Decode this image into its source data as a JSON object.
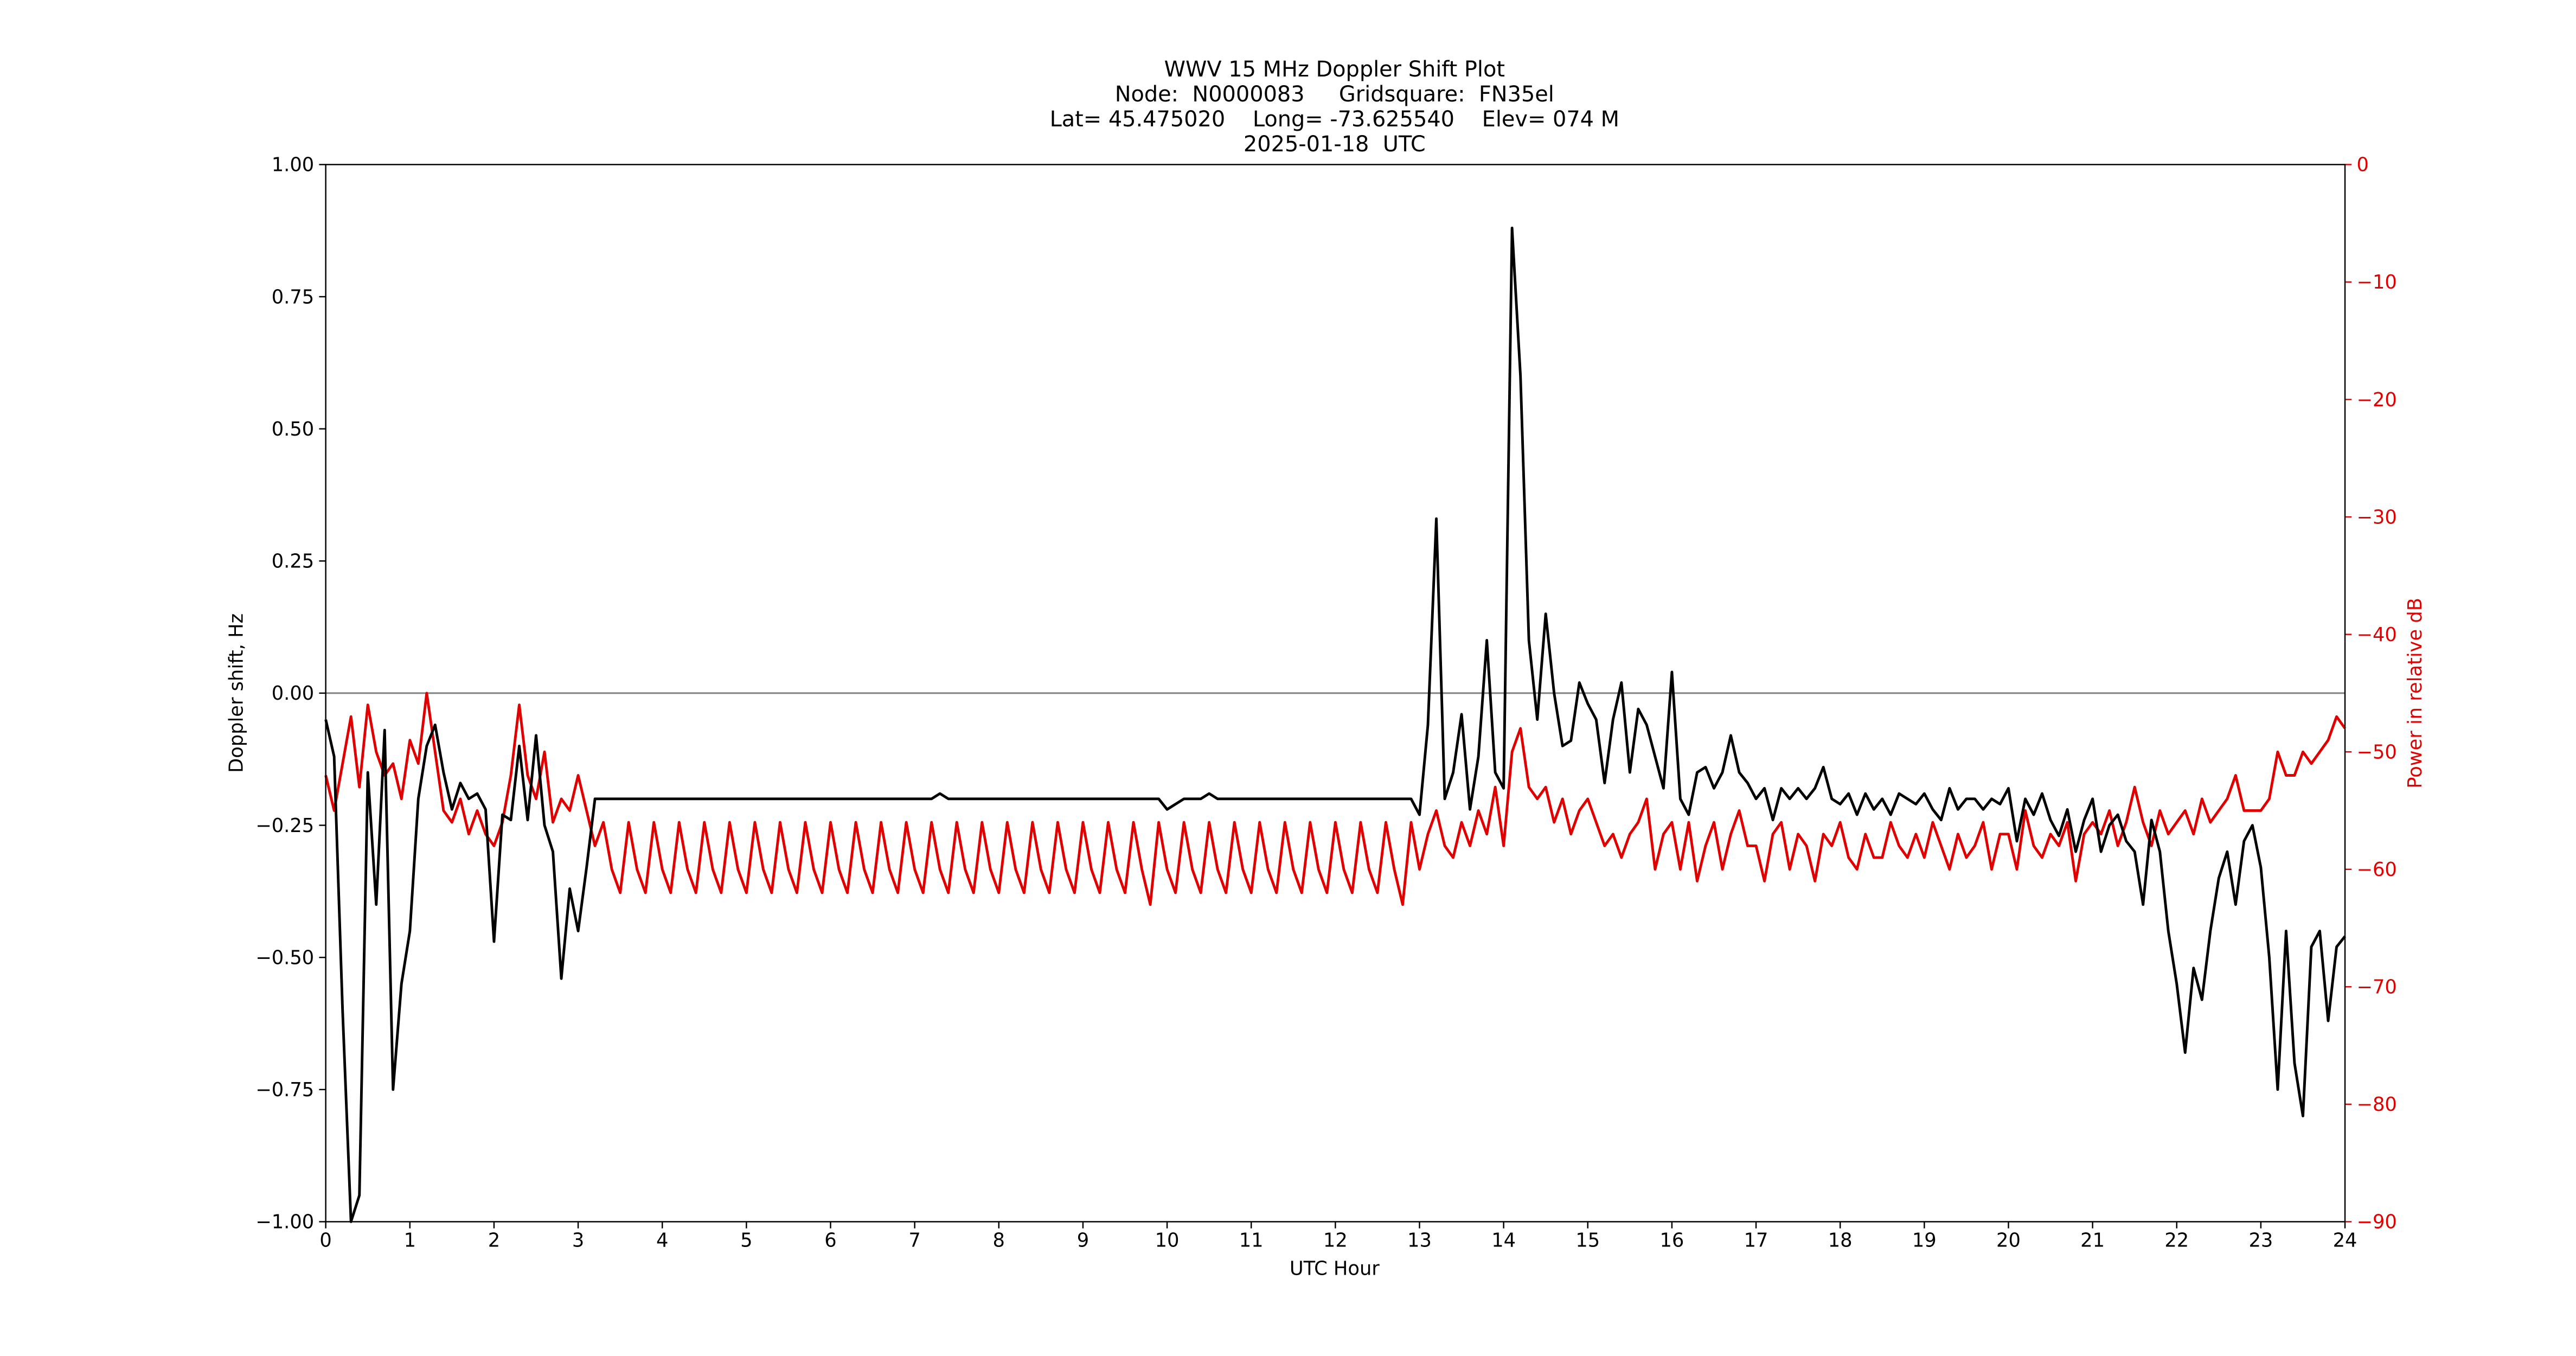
{
  "chart_data": {
    "type": "line",
    "title": "WWV 15 MHz Doppler Shift Plot",
    "subtitle": [
      "Node:  N0000083     Gridsquare:  FN35el",
      "Lat= 45.475020    Long= -73.625540    Elev= 074 M",
      "2025-01-18  UTC"
    ],
    "xlabel": "UTC Hour",
    "ylabel": "Doppler shift, Hz",
    "y2label": "Power in relative dB",
    "xlim": [
      0,
      24
    ],
    "xticks": [
      0,
      1,
      2,
      3,
      4,
      5,
      6,
      7,
      8,
      9,
      10,
      11,
      12,
      13,
      14,
      15,
      16,
      17,
      18,
      19,
      20,
      21,
      22,
      23,
      24
    ],
    "ylim": [
      -1,
      1
    ],
    "yticks": [
      {
        "value": -1,
        "label": "−1.00"
      },
      {
        "value": -0.75,
        "label": "−0.75"
      },
      {
        "value": -0.5,
        "label": "−0.50"
      },
      {
        "value": -0.25,
        "label": "−0.25"
      },
      {
        "value": 0,
        "label": "0.00"
      },
      {
        "value": 0.25,
        "label": "0.25"
      },
      {
        "value": 0.5,
        "label": "0.50"
      },
      {
        "value": 0.75,
        "label": "0.75"
      },
      {
        "value": 1,
        "label": "1.00"
      }
    ],
    "y2lim": [
      -90,
      0
    ],
    "y2ticks": [
      {
        "value": -90,
        "label": "−90"
      },
      {
        "value": -80,
        "label": "−80"
      },
      {
        "value": -70,
        "label": "−70"
      },
      {
        "value": -60,
        "label": "−60"
      },
      {
        "value": -50,
        "label": "−50"
      },
      {
        "value": -40,
        "label": "−40"
      },
      {
        "value": -30,
        "label": "−30"
      },
      {
        "value": -20,
        "label": "−20"
      },
      {
        "value": -10,
        "label": "−10"
      },
      0
    ],
    "y2color": "#e00000",
    "reference_line": 0,
    "x": [
      0,
      0.1,
      0.2,
      0.3,
      0.4,
      0.5,
      0.6,
      0.7,
      0.8,
      0.9,
      1,
      1.1,
      1.2,
      1.3,
      1.4,
      1.5,
      1.6,
      1.7,
      1.8,
      1.9,
      2,
      2.1,
      2.2,
      2.3,
      2.4,
      2.5,
      2.6,
      2.7,
      2.8,
      2.9,
      3,
      3.1,
      3.2,
      3.3,
      3.4,
      3.5,
      3.6,
      3.7,
      3.8,
      3.9,
      4,
      4.1,
      4.2,
      4.3,
      4.4,
      4.5,
      4.6,
      4.7,
      4.8,
      4.9,
      5,
      5.1,
      5.2,
      5.3,
      5.4,
      5.5,
      5.6,
      5.7,
      5.8,
      5.9,
      6,
      6.1,
      6.2,
      6.3,
      6.4,
      6.5,
      6.6,
      6.7,
      6.8,
      6.9,
      7,
      7.1,
      7.2,
      7.3,
      7.4,
      7.5,
      7.6,
      7.7,
      7.8,
      7.9,
      8,
      8.1,
      8.2,
      8.3,
      8.4,
      8.5,
      8.6,
      8.7,
      8.8,
      8.9,
      9,
      9.1,
      9.2,
      9.3,
      9.4,
      9.5,
      9.6,
      9.7,
      9.8,
      9.9,
      10,
      10.1,
      10.2,
      10.3,
      10.4,
      10.5,
      10.6,
      10.7,
      10.8,
      10.9,
      11,
      11.1,
      11.2,
      11.3,
      11.4,
      11.5,
      11.6,
      11.7,
      11.8,
      11.9,
      12,
      12.1,
      12.2,
      12.3,
      12.4,
      12.5,
      12.6,
      12.7,
      12.8,
      12.9,
      13,
      13.1,
      13.2,
      13.3,
      13.4,
      13.5,
      13.6,
      13.7,
      13.8,
      13.9,
      14,
      14.1,
      14.2,
      14.3,
      14.4,
      14.5,
      14.6,
      14.7,
      14.8,
      14.9,
      15,
      15.1,
      15.2,
      15.3,
      15.4,
      15.5,
      15.6,
      15.7,
      15.8,
      15.9,
      16,
      16.1,
      16.2,
      16.3,
      16.4,
      16.5,
      16.6,
      16.7,
      16.8,
      16.9,
      17,
      17.1,
      17.2,
      17.3,
      17.4,
      17.5,
      17.6,
      17.7,
      17.8,
      17.9,
      18,
      18.1,
      18.2,
      18.3,
      18.4,
      18.5,
      18.6,
      18.7,
      18.8,
      18.9,
      19,
      19.1,
      19.2,
      19.3,
      19.4,
      19.5,
      19.6,
      19.7,
      19.8,
      19.9,
      20,
      20.1,
      20.2,
      20.3,
      20.4,
      20.5,
      20.6,
      20.7,
      20.8,
      20.9,
      21,
      21.1,
      21.2,
      21.3,
      21.4,
      21.5,
      21.6,
      21.7,
      21.8,
      21.9,
      22,
      22.1,
      22.2,
      22.3,
      22.4,
      22.5,
      22.6,
      22.7,
      22.8,
      22.9,
      23,
      23.1,
      23.2,
      23.3,
      23.4,
      23.5,
      23.6,
      23.7,
      23.8,
      23.9,
      24
    ],
    "series": [
      {
        "name": "Doppler shift",
        "color": "#000000",
        "axis": "y",
        "values": [
          -0.05,
          -0.12,
          -0.6,
          -1.0,
          -0.95,
          -0.15,
          -0.4,
          -0.07,
          -0.75,
          -0.55,
          -0.45,
          -0.2,
          -0.1,
          -0.06,
          -0.15,
          -0.22,
          -0.17,
          -0.2,
          -0.19,
          -0.22,
          -0.47,
          -0.23,
          -0.24,
          -0.1,
          -0.24,
          -0.08,
          -0.25,
          -0.3,
          -0.54,
          -0.37,
          -0.45,
          -0.33,
          -0.2,
          -0.2,
          -0.2,
          -0.2,
          -0.2,
          -0.2,
          -0.2,
          -0.2,
          -0.2,
          -0.2,
          -0.2,
          -0.2,
          -0.2,
          -0.2,
          -0.2,
          -0.2,
          -0.2,
          -0.2,
          -0.2,
          -0.2,
          -0.2,
          -0.2,
          -0.2,
          -0.2,
          -0.2,
          -0.2,
          -0.2,
          -0.2,
          -0.2,
          -0.2,
          -0.2,
          -0.2,
          -0.2,
          -0.2,
          -0.2,
          -0.2,
          -0.2,
          -0.2,
          -0.2,
          -0.2,
          -0.2,
          -0.19,
          -0.2,
          -0.2,
          -0.2,
          -0.2,
          -0.2,
          -0.2,
          -0.2,
          -0.2,
          -0.2,
          -0.2,
          -0.2,
          -0.2,
          -0.2,
          -0.2,
          -0.2,
          -0.2,
          -0.2,
          -0.2,
          -0.2,
          -0.2,
          -0.2,
          -0.2,
          -0.2,
          -0.2,
          -0.2,
          -0.2,
          -0.22,
          -0.21,
          -0.2,
          -0.2,
          -0.2,
          -0.19,
          -0.2,
          -0.2,
          -0.2,
          -0.2,
          -0.2,
          -0.2,
          -0.2,
          -0.2,
          -0.2,
          -0.2,
          -0.2,
          -0.2,
          -0.2,
          -0.2,
          -0.2,
          -0.2,
          -0.2,
          -0.2,
          -0.2,
          -0.2,
          -0.2,
          -0.2,
          -0.2,
          -0.2,
          -0.23,
          -0.06,
          0.33,
          -0.2,
          -0.15,
          -0.04,
          -0.22,
          -0.12,
          0.1,
          -0.15,
          -0.18,
          0.88,
          0.6,
          0.1,
          -0.05,
          0.15,
          0.0,
          -0.1,
          -0.09,
          0.02,
          -0.02,
          -0.05,
          -0.17,
          -0.05,
          0.02,
          -0.15,
          -0.03,
          -0.06,
          -0.12,
          -0.18,
          0.04,
          -0.2,
          -0.23,
          -0.15,
          -0.14,
          -0.18,
          -0.15,
          -0.08,
          -0.15,
          -0.17,
          -0.2,
          -0.18,
          -0.24,
          -0.18,
          -0.2,
          -0.18,
          -0.2,
          -0.18,
          -0.14,
          -0.2,
          -0.21,
          -0.19,
          -0.23,
          -0.19,
          -0.22,
          -0.2,
          -0.23,
          -0.19,
          -0.2,
          -0.21,
          -0.19,
          -0.22,
          -0.24,
          -0.18,
          -0.22,
          -0.2,
          -0.2,
          -0.22,
          -0.2,
          -0.21,
          -0.18,
          -0.28,
          -0.2,
          -0.23,
          -0.19,
          -0.24,
          -0.27,
          -0.22,
          -0.3,
          -0.24,
          -0.2,
          -0.3,
          -0.25,
          -0.23,
          -0.28,
          -0.3,
          -0.4,
          -0.24,
          -0.3,
          -0.45,
          -0.55,
          -0.68,
          -0.52,
          -0.58,
          -0.45,
          -0.35,
          -0.3,
          -0.4,
          -0.28,
          -0.25,
          -0.33,
          -0.5,
          -0.75,
          -0.45,
          -0.7,
          -0.8,
          -0.48,
          -0.45,
          -0.62,
          -0.48,
          -0.46
        ]
      },
      {
        "name": "Power",
        "color": "#e00000",
        "axis": "y2",
        "values": [
          -52,
          -55,
          -51,
          -47,
          -53,
          -46,
          -50,
          -52,
          -51,
          -54,
          -49,
          -51,
          -45,
          -50,
          -55,
          -56,
          -54,
          -57,
          -55,
          -57,
          -58,
          -56,
          -52,
          -46,
          -52,
          -54,
          -50,
          -56,
          -54,
          -55,
          -52,
          -55,
          -58,
          -56,
          -60,
          -62,
          -56,
          -60,
          -62,
          -56,
          -60,
          -62,
          -56,
          -60,
          -62,
          -56,
          -60,
          -62,
          -56,
          -60,
          -62,
          -56,
          -60,
          -62,
          -56,
          -60,
          -62,
          -56,
          -60,
          -62,
          -56,
          -60,
          -62,
          -56,
          -60,
          -62,
          -56,
          -60,
          -62,
          -56,
          -60,
          -62,
          -56,
          -60,
          -62,
          -56,
          -60,
          -62,
          -56,
          -60,
          -62,
          -56,
          -60,
          -62,
          -56,
          -60,
          -62,
          -56,
          -60,
          -62,
          -56,
          -60,
          -62,
          -56,
          -60,
          -62,
          -56,
          -60,
          -63,
          -56,
          -60,
          -62,
          -56,
          -60,
          -62,
          -56,
          -60,
          -62,
          -56,
          -60,
          -62,
          -56,
          -60,
          -62,
          -56,
          -60,
          -62,
          -56,
          -60,
          -62,
          -56,
          -60,
          -62,
          -56,
          -60,
          -62,
          -56,
          -60,
          -63,
          -56,
          -60,
          -57,
          -55,
          -58,
          -59,
          -56,
          -58,
          -55,
          -57,
          -53,
          -58,
          -50,
          -48,
          -53,
          -54,
          -53,
          -56,
          -54,
          -57,
          -55,
          -54,
          -56,
          -58,
          -57,
          -59,
          -57,
          -56,
          -54,
          -60,
          -57,
          -56,
          -60,
          -56,
          -61,
          -58,
          -56,
          -60,
          -57,
          -55,
          -58,
          -58,
          -61,
          -57,
          -56,
          -60,
          -57,
          -58,
          -61,
          -57,
          -58,
          -56,
          -59,
          -60,
          -57,
          -59,
          -59,
          -56,
          -58,
          -59,
          -57,
          -59,
          -56,
          -58,
          -60,
          -57,
          -59,
          -58,
          -56,
          -60,
          -57,
          -57,
          -60,
          -55,
          -58,
          -59,
          -57,
          -58,
          -56,
          -61,
          -57,
          -56,
          -57,
          -55,
          -58,
          -56,
          -53,
          -56,
          -58,
          -55,
          -57,
          -56,
          -55,
          -57,
          -54,
          -56,
          -55,
          -54,
          -52,
          -55,
          -55,
          -55,
          -54,
          -50,
          -52,
          -52,
          -50,
          -51,
          -50,
          -49,
          -47,
          -48
        ]
      }
    ]
  }
}
